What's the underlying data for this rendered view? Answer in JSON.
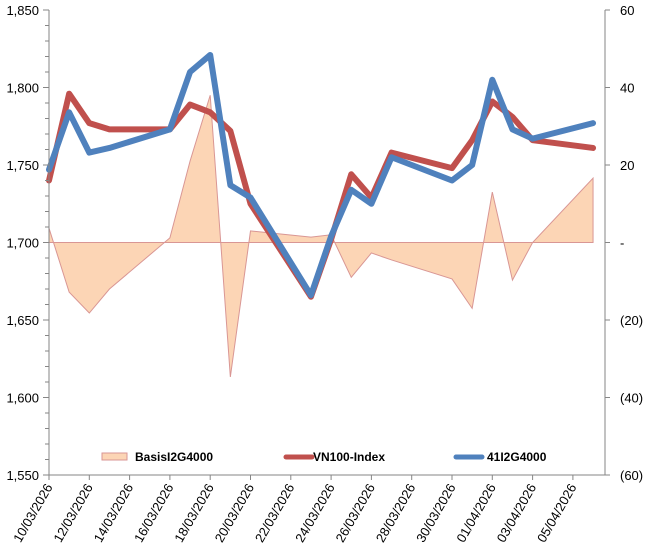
{
  "chart_data": {
    "type": "line",
    "title": "",
    "xlabel": "",
    "ylabel_left": "",
    "ylabel_right": "",
    "x_dates": [
      "10/03/2026",
      "11/03/2026",
      "12/03/2026",
      "13/03/2026",
      "16/03/2026",
      "17/03/2026",
      "18/03/2026",
      "19/03/2026",
      "20/03/2026",
      "23/03/2026",
      "24/03/2026",
      "25/03/2026",
      "26/03/2026",
      "27/03/2026",
      "30/03/2026",
      "31/03/2026",
      "01/04/2026",
      "02/04/2026",
      "03/04/2026",
      "06/04/2026"
    ],
    "x_day_offsets": [
      0,
      1,
      2,
      3,
      6,
      7,
      8,
      9,
      10,
      13,
      14,
      15,
      16,
      17,
      20,
      21,
      22,
      23,
      24,
      27
    ],
    "x_ticks": [
      "10/03/2026",
      "12/03/2026",
      "14/03/2026",
      "16/03/2026",
      "18/03/2026",
      "20/03/2026",
      "22/03/2026",
      "24/03/2026",
      "26/03/2026",
      "28/03/2026",
      "30/03/2026",
      "01/04/2026",
      "03/04/2026",
      "05/04/2026"
    ],
    "x_range_days": [
      0,
      27.5
    ],
    "y_left": {
      "range": [
        1550,
        1850
      ],
      "ticks": [
        "1,550",
        "1,600",
        "1,650",
        "1,700",
        "1,750",
        "1,800",
        "1,850"
      ],
      "tick_values": [
        1550,
        1600,
        1650,
        1700,
        1750,
        1800,
        1850
      ],
      "minor_step": 10
    },
    "y_right": {
      "range": [
        -60,
        60
      ],
      "ticks": [
        "(60)",
        "(40)",
        "(20)",
        "-",
        "20",
        "40",
        "60"
      ],
      "tick_values": [
        -60,
        -40,
        -20,
        0,
        20,
        40,
        60
      ]
    },
    "grid": false,
    "legend_position": "bottom-inside",
    "series": [
      {
        "name": "BasisI2G4000",
        "kind": "area",
        "axis": "right",
        "color": "#FCD5B5",
        "stroke": "#D99694",
        "values": [
          3.7,
          -12.8,
          -18.2,
          -12,
          1.2,
          21,
          38,
          -34.7,
          3,
          1.4,
          2,
          -9,
          -2.7,
          -4.5,
          -9.4,
          -17,
          13,
          -9.7,
          0,
          16.6
        ]
      },
      {
        "name": "VN100-Index",
        "kind": "line",
        "axis": "left",
        "color": "#C0504D",
        "values": [
          1740,
          1796,
          1777,
          1773,
          1773,
          1789,
          1784,
          1772,
          1725,
          1665,
          1702,
          1744,
          1729,
          1758,
          1748,
          1766,
          1791,
          1781,
          1766,
          1761
        ]
      },
      {
        "name": "41I2G4000",
        "kind": "line",
        "axis": "left",
        "color": "#4F81BD",
        "values": [
          1747,
          1784,
          1758,
          1761,
          1773,
          1810,
          1821,
          1737,
          1729,
          1666,
          1704,
          1734,
          1725,
          1755,
          1740,
          1750,
          1805,
          1773,
          1767,
          1777
        ]
      }
    ]
  },
  "legend": {
    "items": [
      {
        "label": "BasisI2G4000"
      },
      {
        "label": "VN100-Index"
      },
      {
        "label": "41I2G4000"
      }
    ]
  }
}
